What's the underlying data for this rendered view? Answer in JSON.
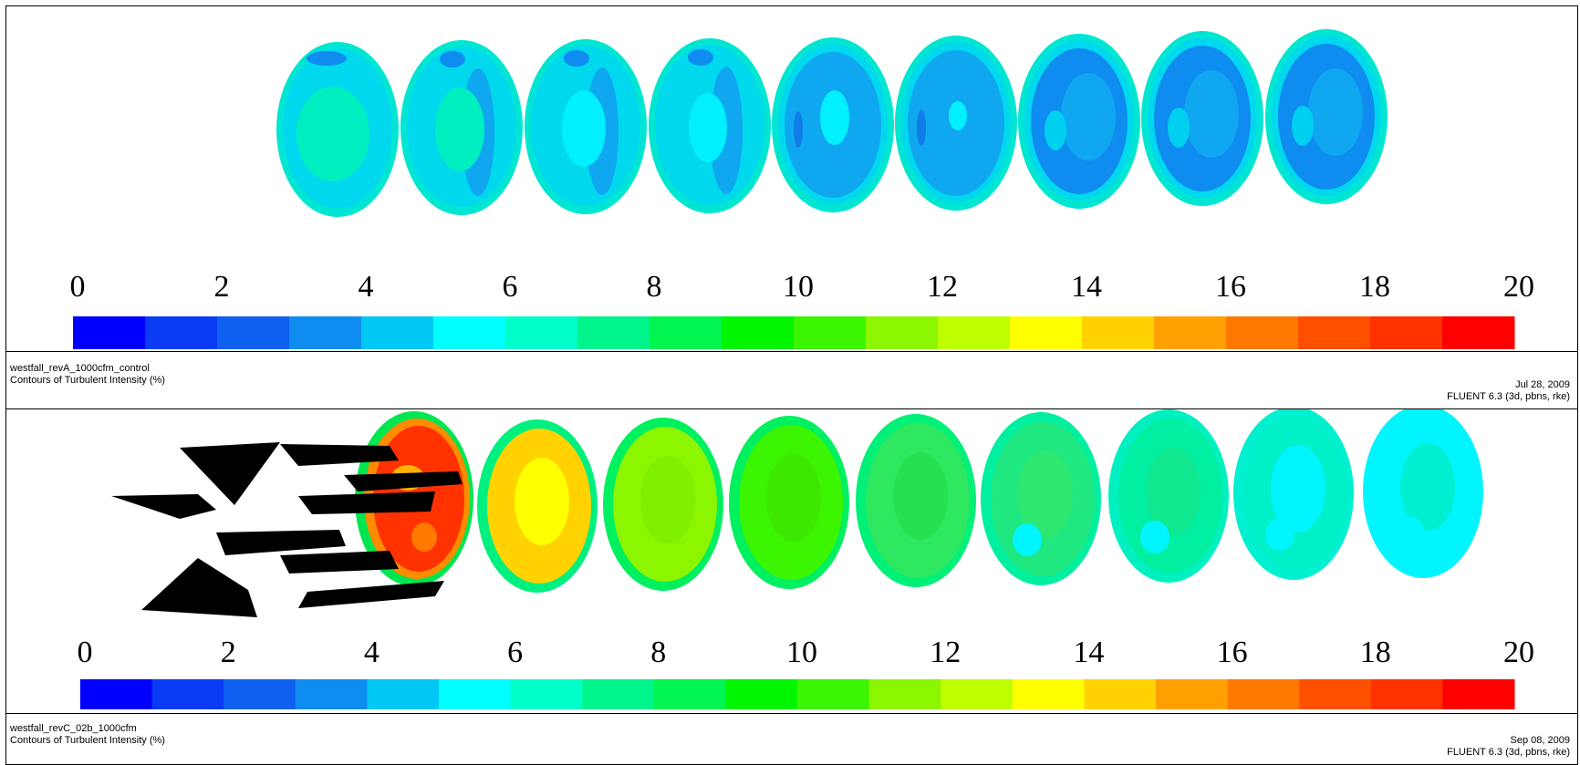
{
  "colorbar": {
    "tick_labels": [
      "0",
      "2",
      "4",
      "6",
      "8",
      "10",
      "12",
      "14",
      "16",
      "18",
      "20"
    ],
    "colors": [
      "#0000ff",
      "#0a3cf5",
      "#0f5ff0",
      "#0f8cf0",
      "#00c8f5",
      "#00ffff",
      "#00ffc8",
      "#00f58c",
      "#00f550",
      "#00f500",
      "#3cf500",
      "#8cf500",
      "#beff00",
      "#ffff00",
      "#ffd200",
      "#ffa000",
      "#ff7800",
      "#ff5000",
      "#ff3200",
      "#ff0000"
    ]
  },
  "top": {
    "case_name": "westfall_revA_1000cfm_control",
    "title": "Contours of Turbulent Intensity (%)",
    "date": "Jul 28, 2009",
    "solver": "FLUENT 6.3 (3d, pbns, rke)"
  },
  "bottom": {
    "case_name": "westfall_revC_02b_1000cfm",
    "title": "Contours of Turbulent Intensity (%)",
    "date": "Sep 08, 2009",
    "solver": "FLUENT 6.3 (3d, pbns, rke)"
  }
}
